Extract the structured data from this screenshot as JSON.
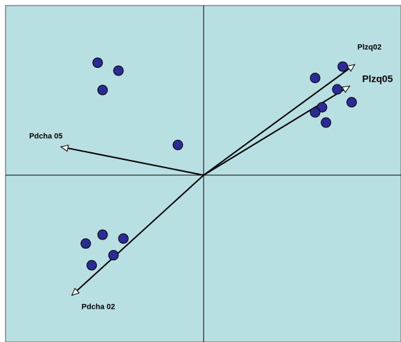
{
  "chart_data": {
    "type": "scatter",
    "title": "",
    "xlabel": "",
    "ylabel": "",
    "xlim": [
      -1,
      1
    ],
    "ylim": [
      -1,
      1
    ],
    "grid": false,
    "axes_lines": true,
    "background_color": "#b8e0e3",
    "point_color": "#2b2b96",
    "point_outline_color": "#000000",
    "line_color": "#000000",
    "points": [
      {
        "x": -0.535,
        "y": 0.663
      },
      {
        "x": -0.43,
        "y": 0.616
      },
      {
        "x": -0.51,
        "y": 0.502
      },
      {
        "x": -0.13,
        "y": 0.178
      },
      {
        "x": 0.565,
        "y": 0.573
      },
      {
        "x": 0.705,
        "y": 0.64
      },
      {
        "x": 0.677,
        "y": 0.506
      },
      {
        "x": 0.75,
        "y": 0.43
      },
      {
        "x": 0.6,
        "y": 0.4
      },
      {
        "x": 0.565,
        "y": 0.37
      },
      {
        "x": 0.62,
        "y": 0.31
      },
      {
        "x": -0.51,
        "y": -0.357
      },
      {
        "x": -0.405,
        "y": -0.38
      },
      {
        "x": -0.595,
        "y": -0.41
      },
      {
        "x": -0.455,
        "y": -0.48
      },
      {
        "x": -0.565,
        "y": -0.54
      }
    ],
    "vectors": [
      {
        "label": "Plzq02",
        "x": 0.765,
        "y": 0.652
      },
      {
        "label": "Plzq05",
        "x": 0.74,
        "y": 0.525
      },
      {
        "label": "Pdcha 05",
        "x": -0.72,
        "y": 0.167
      },
      {
        "label": "Pdcha 02",
        "x": -0.665,
        "y": -0.72
      }
    ]
  }
}
